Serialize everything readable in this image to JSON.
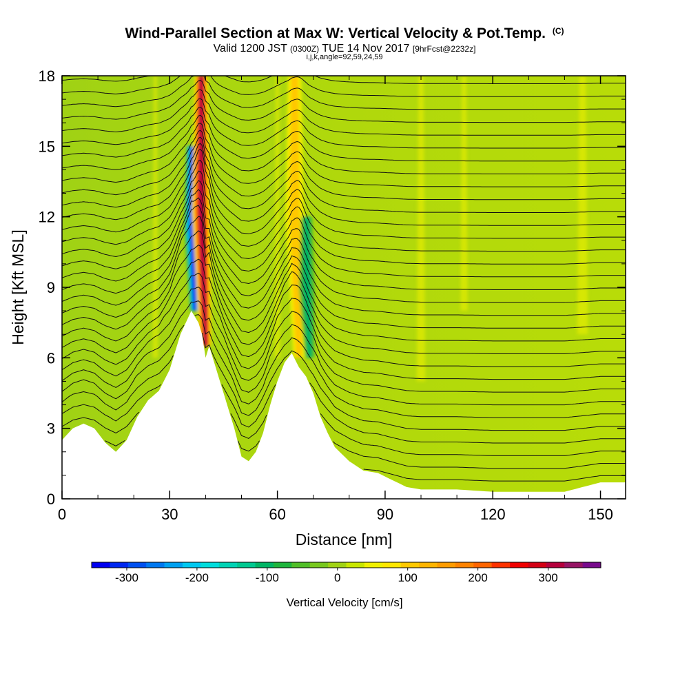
{
  "header": {
    "title": "Wind-Parallel Section at Max W: Vertical Velocity & Pot.Temp.",
    "copyright_mark": "(C)",
    "valid_prefix": "Valid 1200 JST",
    "valid_z": "(0300Z)",
    "valid_date": "TUE 14 Nov 2017",
    "forecast_info": "[9hrFcst@2232z]",
    "indices": "i,j,k,angle=92,59,24,59"
  },
  "chart_data": {
    "type": "heatmap",
    "xlabel": "Distance [nm]",
    "ylabel": "Height [Kft MSL]",
    "xlim": [
      0,
      157
    ],
    "ylim": [
      0,
      18
    ],
    "x_ticks": [
      0,
      30,
      60,
      90,
      120,
      150
    ],
    "y_ticks": [
      0,
      3,
      6,
      9,
      12,
      15,
      18
    ],
    "terrain": {
      "x": [
        0,
        3,
        6,
        9,
        12,
        15,
        18,
        21,
        24,
        27,
        30,
        33,
        36,
        38,
        39,
        40,
        41,
        43,
        46,
        48,
        50,
        52,
        54,
        56,
        58,
        60,
        62,
        64,
        66,
        68,
        70,
        72,
        74,
        76,
        80,
        84,
        88,
        92,
        96,
        100,
        110,
        120,
        130,
        140,
        150,
        157
      ],
      "height": [
        2.5,
        3.0,
        3.2,
        3.0,
        2.4,
        2.0,
        2.5,
        3.5,
        4.2,
        4.6,
        5.5,
        7.0,
        8.0,
        7.5,
        7.0,
        6.0,
        6.5,
        5.5,
        4.0,
        3.0,
        1.8,
        1.6,
        2.0,
        2.8,
        4.0,
        5.0,
        5.8,
        6.2,
        5.6,
        5.2,
        4.5,
        3.5,
        2.8,
        2.2,
        1.6,
        1.2,
        1.1,
        0.8,
        0.5,
        0.4,
        0.4,
        0.3,
        0.3,
        0.3,
        0.7,
        0.7
      ]
    },
    "vertical_velocity_features": [
      {
        "type": "downdraft",
        "x_center": 37,
        "height_range": [
          8,
          15
        ],
        "peak_cm_s": -300
      },
      {
        "type": "updraft",
        "x_center": 40,
        "height_range": [
          6.5,
          18
        ],
        "peak_cm_s": 300
      },
      {
        "type": "updraft",
        "x_center": 66,
        "height_range": [
          6,
          18
        ],
        "peak_cm_s": 100
      },
      {
        "type": "downdraft",
        "x_center": 69,
        "height_range": [
          6,
          12
        ],
        "peak_cm_s": -100
      }
    ],
    "potential_temperature": {
      "contour_count": 33,
      "spacing_kft": 0.55
    },
    "colorbar": {
      "title": "Vertical Velocity [cm/s]",
      "min": -350,
      "max": 375,
      "tick_labels": [
        "-300",
        "-200",
        "-100",
        "0",
        "100",
        "200",
        "300"
      ],
      "tick_values": [
        -300,
        -200,
        -100,
        0,
        100,
        200,
        300
      ],
      "colors": [
        "#0000f0",
        "#0028f0",
        "#0050f0",
        "#0078f0",
        "#00a0f0",
        "#00c8f0",
        "#00dcdc",
        "#00d2b4",
        "#00c890",
        "#00b464",
        "#1eb43c",
        "#50be28",
        "#78c81e",
        "#a0d214",
        "#c8e600",
        "#f0f000",
        "#ffe600",
        "#ffc800",
        "#ffb400",
        "#ff9b00",
        "#ff8200",
        "#ff6400",
        "#ff3200",
        "#f00000",
        "#d20014",
        "#b4003c",
        "#961464",
        "#780a8c"
      ]
    }
  }
}
